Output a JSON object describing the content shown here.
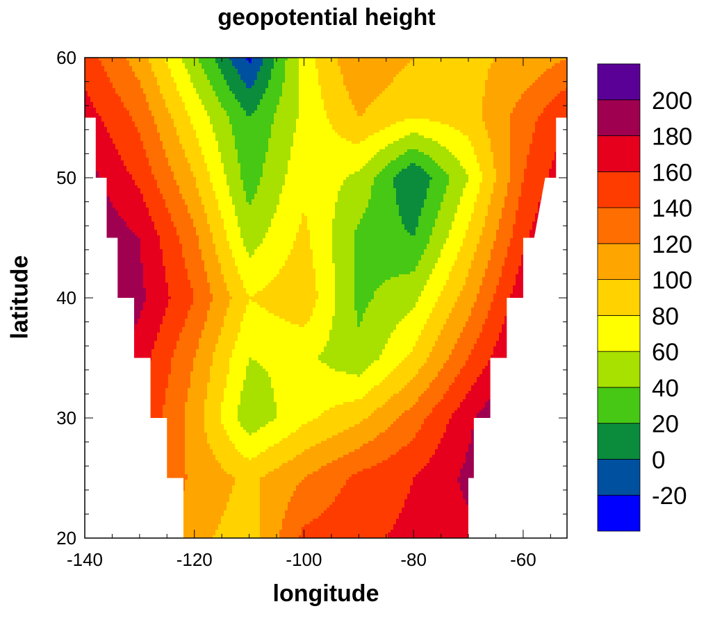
{
  "chart_data": {
    "type": "heatmap",
    "title": "geopotential height",
    "xlabel": "longitude",
    "ylabel": "latitude",
    "xlim": [
      -140,
      -52
    ],
    "ylim": [
      20,
      60
    ],
    "xticks": [
      -140,
      -120,
      -100,
      -80,
      -60
    ],
    "yticks": [
      20,
      30,
      40,
      50,
      60
    ],
    "colorbar": {
      "levels": [
        -20,
        0,
        20,
        40,
        60,
        80,
        100,
        120,
        140,
        160,
        180,
        200
      ],
      "colors": [
        "#0000ff",
        "#0050a0",
        "#0a8c3c",
        "#46c814",
        "#a8e000",
        "#ffff00",
        "#ffd200",
        "#ffa500",
        "#ff6e00",
        "#ff3c00",
        "#e6001e",
        "#a00050",
        "#5a0096"
      ],
      "tick_labels": [
        "-20",
        "0",
        "20",
        "40",
        "60",
        "80",
        "100",
        "120",
        "140",
        "160",
        "180",
        "200"
      ]
    },
    "grid": {
      "lons": [
        -140,
        -130,
        -120,
        -110,
        -100,
        -90,
        -80,
        -70,
        -60,
        -52
      ],
      "lats": [
        60,
        55,
        50,
        45,
        40,
        35,
        30,
        25,
        20
      ],
      "values": [
        [
          150,
          110,
          45,
          -25,
          70,
          120,
          100,
          95,
          105,
          120
        ],
        [
          170,
          135,
          75,
          20,
          65,
          100,
          80,
          90,
          130,
          160
        ],
        [
          190,
          155,
          100,
          30,
          75,
          55,
          0,
          60,
          140,
          175
        ],
        [
          200,
          180,
          125,
          50,
          85,
          35,
          20,
          85,
          155,
          195
        ],
        [
          205,
          185,
          140,
          80,
          95,
          35,
          55,
          110,
          175,
          200
        ],
        [
          200,
          170,
          120,
          60,
          65,
          45,
          85,
          140,
          190,
          210
        ],
        [
          190,
          160,
          110,
          45,
          75,
          95,
          130,
          175,
          215,
          215
        ],
        [
          175,
          150,
          115,
          95,
          120,
          145,
          160,
          185,
          215,
          215
        ],
        [
          160,
          145,
          105,
          90,
          145,
          155,
          165,
          175,
          200,
          210
        ]
      ]
    },
    "domain_mask": [
      [
        60,
        -140,
        -52
      ],
      [
        55,
        -140,
        -52
      ],
      [
        55,
        -138,
        -54
      ],
      [
        50,
        -138,
        -54
      ],
      [
        50,
        -136,
        -56
      ],
      [
        45,
        -136,
        -58
      ],
      [
        45,
        -134,
        -60
      ],
      [
        40,
        -134,
        -60
      ],
      [
        40,
        -131,
        -63
      ],
      [
        35,
        -131,
        -63
      ],
      [
        35,
        -128,
        -66
      ],
      [
        30,
        -128,
        -66
      ],
      [
        30,
        -125,
        -69
      ],
      [
        25,
        -125,
        -69
      ],
      [
        25,
        -122,
        -70
      ],
      [
        20,
        -122,
        -70
      ]
    ]
  }
}
